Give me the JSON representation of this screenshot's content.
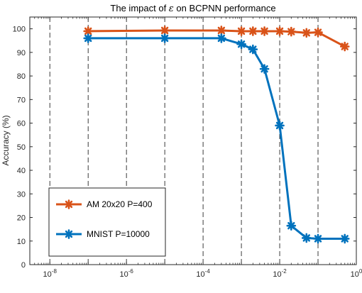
{
  "chart_data": {
    "type": "line",
    "title": "The impact of ε on BCPNN performance",
    "title_prefix": "The impact of ",
    "title_symbol": "ε",
    "title_suffix": " on BCPNN performance",
    "xlabel": "",
    "ylabel": "Accuracy (%)",
    "xscale": "log",
    "xlim": [
      3e-09,
      1
    ],
    "ylim": [
      0,
      105
    ],
    "yticks": [
      0,
      10,
      20,
      30,
      40,
      50,
      60,
      70,
      80,
      90,
      100
    ],
    "xticks": [
      {
        "base": "10",
        "exp": "-8",
        "value": 1e-08
      },
      {
        "base": "10",
        "exp": "-6",
        "value": 1e-06
      },
      {
        "base": "10",
        "exp": "-4",
        "value": 0.0001
      },
      {
        "base": "10",
        "exp": "-2",
        "value": 0.01
      },
      {
        "base": "10",
        "exp": "0",
        "value": 1
      }
    ],
    "dashed_gridlines_x": [
      1e-08,
      1e-07,
      1e-06,
      1e-05,
      0.0001,
      0.001,
      0.01,
      0.1
    ],
    "grid": "vertical dashed",
    "legend_position": "bottom-left",
    "series": [
      {
        "name": "AM 20x20 P=400",
        "color": "#D95319",
        "marker": "asterisk",
        "x": [
          1e-09,
          1e-07,
          1e-05,
          0.0003,
          0.001,
          0.002,
          0.004,
          0.01,
          0.02,
          0.05,
          0.1,
          0.5
        ],
        "y": [
          99.0,
          99.0,
          99.3,
          99.3,
          99.0,
          99.0,
          99.0,
          99.0,
          98.8,
          98.3,
          98.5,
          92.5
        ]
      },
      {
        "name": "MNIST P=10000",
        "color": "#0072BD",
        "marker": "asterisk",
        "x": [
          1e-09,
          1e-07,
          1e-05,
          0.0003,
          0.001,
          0.002,
          0.004,
          0.01,
          0.02,
          0.05,
          0.1,
          0.5
        ],
        "y": [
          96.0,
          96.0,
          96.0,
          96.0,
          93.5,
          91.3,
          83.0,
          59.0,
          16.5,
          11.3,
          11.0,
          11.0
        ]
      }
    ]
  }
}
